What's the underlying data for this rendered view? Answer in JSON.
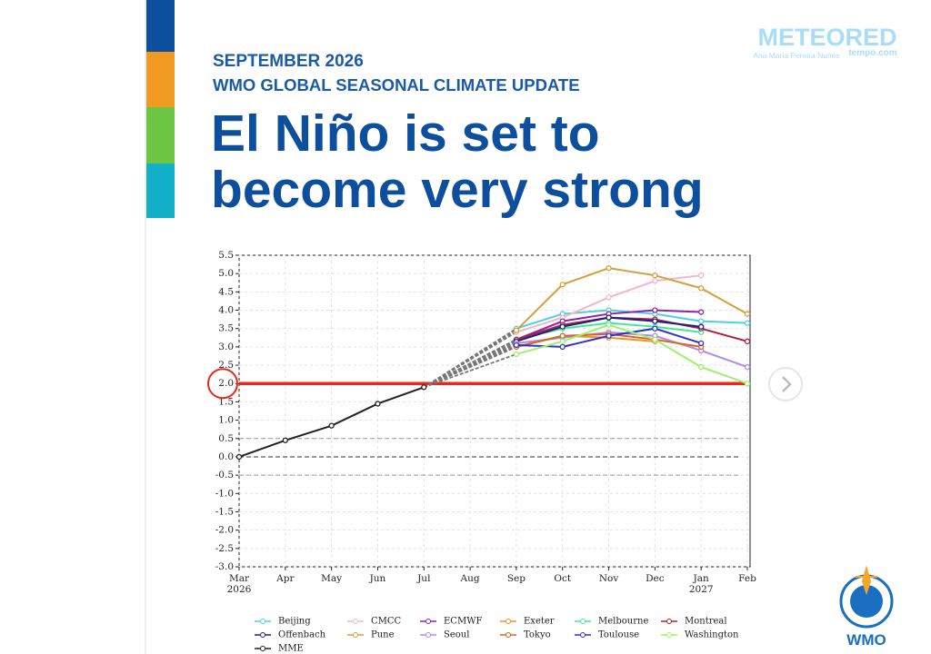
{
  "header": {
    "kicker": "SEPTEMBER 2026",
    "subtitle": "WMO GLOBAL SEASONAL CLIMATE UPDATE",
    "title_line1": "El Niño is set to",
    "title_line2": "become very strong"
  },
  "branding": {
    "logo": "METEORED",
    "author": "Ana Maria Pereira Nunes",
    "site": "tempo.com",
    "org": "WMO"
  },
  "chart_data": {
    "type": "line",
    "categories": [
      "Mar 2026",
      "Apr",
      "May",
      "Jun",
      "Jul",
      "Aug",
      "Sep",
      "Oct",
      "Nov",
      "Dec",
      "Jan 2027",
      "Feb"
    ],
    "ylim": [
      -3.0,
      5.5
    ],
    "yticks": [
      {
        "value": -3,
        "label": "-3.0"
      },
      -2.5,
      {
        "value": -2,
        "label": "-2.0"
      },
      -1.5,
      {
        "value": -1,
        "label": "-1.0"
      },
      -0.5,
      {
        "value": 0,
        "label": "0.0"
      },
      0.5,
      {
        "value": 1,
        "label": "1.0"
      },
      1.5,
      {
        "value": 2,
        "label": "2.0"
      },
      2.5,
      {
        "value": 3,
        "label": "3.0"
      },
      3.5,
      {
        "value": 4,
        "label": "4.0"
      },
      4.5,
      {
        "value": 5,
        "label": "5.0"
      },
      5.5
    ],
    "grid": true,
    "threshold": {
      "value": 2,
      "color": "#e8281e"
    },
    "reference_lines": [
      0.5,
      0,
      -0.5
    ],
    "series": [
      {
        "name": "Beijing",
        "color": "#4dd0e1",
        "values": [
          null,
          null,
          null,
          null,
          null,
          null,
          3.5,
          3.9,
          4.0,
          3.9,
          3.7,
          3.65
        ]
      },
      {
        "name": "CMCC",
        "color": "#f4b6c8",
        "values": [
          null,
          null,
          null,
          null,
          null,
          null,
          3.4,
          3.8,
          4.35,
          4.8,
          4.95,
          null
        ]
      },
      {
        "name": "ECMWF",
        "color": "#8e24aa",
        "values": [
          null,
          null,
          null,
          null,
          null,
          null,
          3.2,
          3.7,
          3.9,
          4.0,
          3.95,
          null
        ]
      },
      {
        "name": "Exeter",
        "color": "#f0932b",
        "values": [
          null,
          null,
          null,
          null,
          null,
          null,
          3.0,
          3.3,
          3.25,
          3.15,
          null,
          null
        ]
      },
      {
        "name": "Melbourne",
        "color": "#3ee89a",
        "values": [
          null,
          null,
          null,
          null,
          null,
          null,
          3.2,
          3.5,
          3.65,
          3.55,
          3.4,
          null
        ]
      },
      {
        "name": "Montreal",
        "color": "#b0203a",
        "values": [
          null,
          null,
          null,
          null,
          null,
          null,
          3.2,
          3.6,
          3.8,
          3.75,
          3.5,
          3.15
        ]
      },
      {
        "name": "Offenbach",
        "color": "#1a237e",
        "values": [
          null,
          null,
          null,
          null,
          null,
          null,
          3.15,
          3.55,
          3.8,
          3.7,
          3.55,
          null
        ]
      },
      {
        "name": "Pune",
        "color": "#d4a03a",
        "values": [
          null,
          null,
          null,
          null,
          null,
          null,
          3.45,
          4.7,
          5.15,
          4.95,
          4.6,
          3.9
        ]
      },
      {
        "name": "Seoul",
        "color": "#b388eb",
        "values": [
          null,
          null,
          null,
          null,
          null,
          null,
          3.1,
          3.25,
          3.4,
          3.3,
          2.9,
          2.45
        ]
      },
      {
        "name": "Tokyo",
        "color": "#d2691e",
        "values": [
          null,
          null,
          null,
          null,
          null,
          null,
          3.0,
          3.3,
          3.35,
          3.2,
          3.0,
          null
        ]
      },
      {
        "name": "Toulouse",
        "color": "#3030d0",
        "values": [
          null,
          null,
          null,
          null,
          null,
          null,
          3.05,
          3.0,
          3.3,
          3.5,
          3.1,
          null
        ]
      },
      {
        "name": "Washington",
        "color": "#9cf36a",
        "values": [
          null,
          null,
          null,
          null,
          null,
          null,
          2.8,
          3.15,
          3.6,
          3.2,
          2.45,
          2.0
        ]
      },
      {
        "name": "MME",
        "color": "#222222",
        "values": [
          0,
          0.45,
          0.85,
          1.45,
          1.9,
          null,
          null,
          null,
          null,
          null,
          null,
          null
        ]
      }
    ]
  }
}
